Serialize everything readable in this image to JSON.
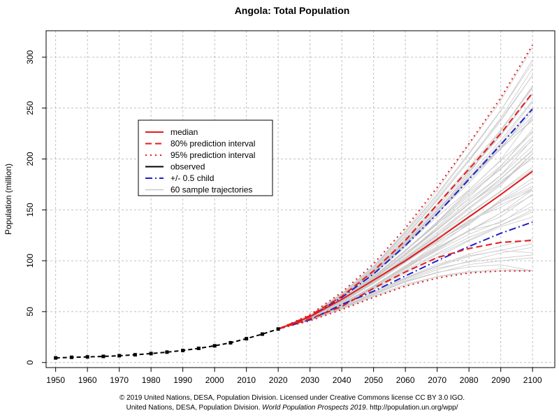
{
  "chart_data": {
    "type": "line",
    "title": "Angola: Total Population",
    "ylabel": "Population (million)",
    "xlabel": "",
    "xlim": [
      1947,
      2107
    ],
    "ylim": [
      -5,
      326
    ],
    "x_ticks": [
      1950,
      1960,
      1970,
      1980,
      1990,
      2000,
      2010,
      2020,
      2030,
      2040,
      2050,
      2060,
      2070,
      2080,
      2090,
      2100
    ],
    "y_ticks": [
      0,
      50,
      100,
      150,
      200,
      250,
      300
    ],
    "grid": true,
    "legend_position": "upper-left",
    "legend": [
      {
        "label": "median",
        "color": "#e41a1c",
        "style": "solid"
      },
      {
        "label": "80% prediction interval",
        "color": "#e41a1c",
        "style": "dashed"
      },
      {
        "label": "95% prediction interval",
        "color": "#e41a1c",
        "style": "dotted"
      },
      {
        "label": "observed",
        "color": "#000000",
        "style": "solid"
      },
      {
        "label": "+/- 0.5 child",
        "color": "#1f1fc8",
        "style": "dashdot"
      },
      {
        "label": "60 sample trajectories",
        "color": "#c8c8c8",
        "style": "solid"
      }
    ],
    "observed": {
      "x": [
        1950,
        1955,
        1960,
        1965,
        1970,
        1975,
        1980,
        1985,
        1990,
        1995,
        2000,
        2005,
        2010,
        2015,
        2020
      ],
      "y": [
        4.5,
        5.1,
        5.5,
        6.0,
        6.7,
        7.6,
        8.8,
        10.2,
        11.8,
        13.9,
        16.4,
        19.4,
        23.4,
        27.9,
        32.9
      ]
    },
    "projection_x": [
      2020,
      2030,
      2040,
      2050,
      2060,
      2070,
      2080,
      2090,
      2100
    ],
    "series": [
      {
        "name": "median",
        "values": [
          32.9,
          45,
          62,
          81,
          100,
          121,
          143,
          165,
          188
        ]
      },
      {
        "name": "80% prediction interval",
        "values": [
          32.9,
          43,
          55,
          73,
          89,
          103,
          112,
          118,
          120
        ]
      },
      {
        "name": "80% prediction interval",
        "values": [
          32.9,
          46,
          65,
          90,
          120,
          155,
          190,
          225,
          265
        ]
      },
      {
        "name": "95% prediction interval",
        "values": [
          32.9,
          41,
          52,
          64,
          75,
          83,
          88,
          90,
          90
        ]
      },
      {
        "name": "95% prediction interval",
        "values": [
          32.9,
          47,
          69,
          97,
          132,
          172,
          215,
          260,
          312
        ]
      },
      {
        "name": "+/- 0.5 child",
        "values": [
          32.9,
          42,
          57,
          70,
          85,
          100,
          114,
          127,
          138
        ]
      },
      {
        "name": "+/- 0.5 child",
        "values": [
          32.9,
          45,
          64,
          87,
          115,
          146,
          180,
          214,
          249
        ]
      }
    ],
    "trajectory_count": 60,
    "trajectory_color": "#c8c8c8",
    "footer": {
      "line1": "© 2019 United Nations, DESA, Population Division. Licensed under Creative Commons license CC BY 3.0 IGO.",
      "line2a": "United Nations, DESA, Population Division. ",
      "line2b": "World Population Prospects 2019",
      "line2c": ". http://population.un.org/wpp/"
    }
  }
}
